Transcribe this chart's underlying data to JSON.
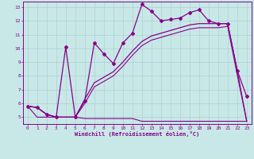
{
  "xlabel": "Windchill (Refroidissement éolien,°C)",
  "bg_color": "#c8e8e8",
  "line_color": "#880088",
  "grid_color": "#a8ccc8",
  "xmin": -0.5,
  "xmax": 23.5,
  "ymin": 4.5,
  "ymax": 13.4,
  "yticks": [
    5,
    6,
    7,
    8,
    9,
    10,
    11,
    12,
    13
  ],
  "xticks": [
    0,
    1,
    2,
    3,
    4,
    5,
    6,
    7,
    8,
    9,
    10,
    11,
    12,
    13,
    14,
    15,
    16,
    17,
    18,
    19,
    20,
    21,
    22,
    23
  ],
  "line1_x": [
    0,
    1,
    2,
    3,
    4,
    5,
    6,
    7,
    8,
    9,
    10,
    11,
    12,
    13,
    14,
    15,
    16,
    17,
    18,
    19,
    20,
    21,
    22,
    23
  ],
  "line1_y": [
    5.8,
    5.7,
    5.2,
    5.0,
    10.1,
    5.0,
    6.2,
    10.4,
    9.6,
    8.9,
    10.4,
    11.1,
    13.2,
    12.7,
    12.0,
    12.1,
    12.2,
    12.6,
    12.8,
    12.0,
    11.8,
    11.8,
    8.4,
    6.5
  ],
  "line2_x": [
    0,
    1,
    2,
    3,
    4,
    5,
    6,
    7,
    8,
    9,
    10,
    11,
    12,
    13,
    14,
    15,
    16,
    17,
    18,
    19,
    20,
    21,
    22,
    23
  ],
  "line2_y": [
    5.8,
    5.7,
    5.2,
    5.0,
    5.0,
    5.0,
    6.3,
    7.5,
    7.9,
    8.3,
    9.0,
    9.8,
    10.5,
    10.9,
    11.1,
    11.3,
    11.5,
    11.7,
    11.8,
    11.8,
    11.8,
    11.8,
    8.4,
    4.7
  ],
  "line3_x": [
    0,
    1,
    2,
    3,
    4,
    5,
    6,
    7,
    8,
    9,
    10,
    11,
    12,
    13,
    14,
    15,
    16,
    17,
    18,
    19,
    20,
    21,
    22,
    23
  ],
  "line3_y": [
    5.8,
    5.7,
    5.2,
    5.0,
    5.0,
    5.0,
    6.0,
    7.2,
    7.6,
    8.0,
    8.7,
    9.5,
    10.2,
    10.6,
    10.8,
    11.0,
    11.2,
    11.4,
    11.5,
    11.5,
    11.5,
    11.6,
    8.1,
    4.7
  ],
  "line4_x": [
    0,
    1,
    2,
    3,
    4,
    5,
    6,
    7,
    8,
    9,
    10,
    11,
    12,
    13,
    14,
    15,
    16,
    17,
    18,
    19,
    20,
    21,
    22,
    23
  ],
  "line4_y": [
    5.8,
    5.0,
    5.0,
    5.0,
    5.0,
    5.0,
    4.9,
    4.9,
    4.9,
    4.9,
    4.9,
    4.9,
    4.7,
    4.7,
    4.7,
    4.7,
    4.7,
    4.7,
    4.7,
    4.7,
    4.7,
    4.7,
    4.7,
    4.7
  ]
}
